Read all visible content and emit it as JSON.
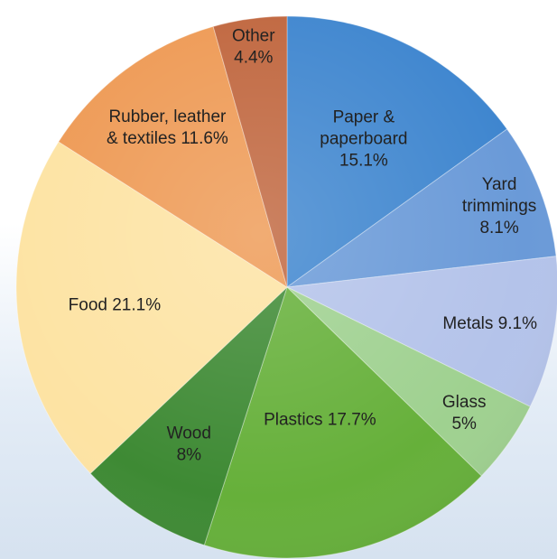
{
  "chart_data": {
    "type": "pie",
    "title": "",
    "start_angle_deg": 0,
    "direction": "clockwise",
    "slices": [
      {
        "label": "Paper & paperboard",
        "display": [
          "Paper &",
          "paperboard",
          "15.1%"
        ],
        "value": 15.1,
        "color": "#3f86cf",
        "label_color": "#ffffff"
      },
      {
        "label": "Yard trimmings",
        "display": [
          "Yard",
          "trimmings",
          "8.1%"
        ],
        "value": 8.1,
        "color": "#6a9ad8",
        "label_color": "#222222"
      },
      {
        "label": "Metals",
        "display": [
          "Metals 9.1%"
        ],
        "value": 9.1,
        "color": "#b4c3ea",
        "label_color": "#222222"
      },
      {
        "label": "Glass",
        "display": [
          "Glass",
          "5%"
        ],
        "value": 5.0,
        "color": "#9fd190",
        "label_color": "#222222"
      },
      {
        "label": "Plastics",
        "display": [
          "Plastics 17.7%"
        ],
        "value": 17.7,
        "color": "#66b03a",
        "label_color": "#222222"
      },
      {
        "label": "Wood",
        "display": [
          "Wood",
          "8%"
        ],
        "value": 8.0,
        "color": "#3e8a34",
        "label_color": "#222222"
      },
      {
        "label": "Food",
        "display": [
          "Food 21.1%"
        ],
        "value": 21.1,
        "color": "#fde3a3",
        "label_color": "#222222"
      },
      {
        "label": "Rubber, leather & textiles",
        "display": [
          "Rubber, leather",
          "& textiles 11.6%"
        ],
        "value": 11.6,
        "color": "#ee9a55",
        "label_color": "#ffffff"
      },
      {
        "label": "Other",
        "display": [
          "Other",
          "4.4%"
        ],
        "value": 4.4,
        "color": "#c0663e",
        "label_color": "#ffffff"
      }
    ]
  }
}
